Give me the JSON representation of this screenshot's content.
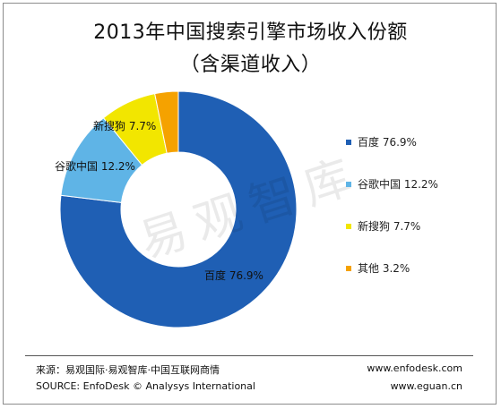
{
  "title_line1": "2013年中国搜索引擎市场收入份额",
  "title_line2": "（含渠道收入）",
  "watermark": "易观智库",
  "chart_data": {
    "type": "pie",
    "variant": "donut",
    "title": "2013年中国搜索引擎市场收入份额（含渠道收入）",
    "unit": "%",
    "slices": [
      {
        "label": "百度",
        "value": 76.9,
        "value_text": "76.9%",
        "color": "#1f5fb4"
      },
      {
        "label": "谷歌中国",
        "value": 12.2,
        "value_text": "12.2%",
        "color": "#5fb4e6"
      },
      {
        "label": "新搜狗",
        "value": 7.7,
        "value_text": "7.7%",
        "color": "#f2e600"
      },
      {
        "label": "其他",
        "value": 3.2,
        "value_text": "3.2%",
        "color": "#f5a200"
      }
    ],
    "legend_position": "right"
  },
  "footer": {
    "source_cn": "来源：易观国际·易观智库·中国互联网商情",
    "source_en": "SOURCE: EnfoDesk © Analysys International",
    "site1": "www.enfodesk.com",
    "site2": "www.eguan.cn"
  }
}
